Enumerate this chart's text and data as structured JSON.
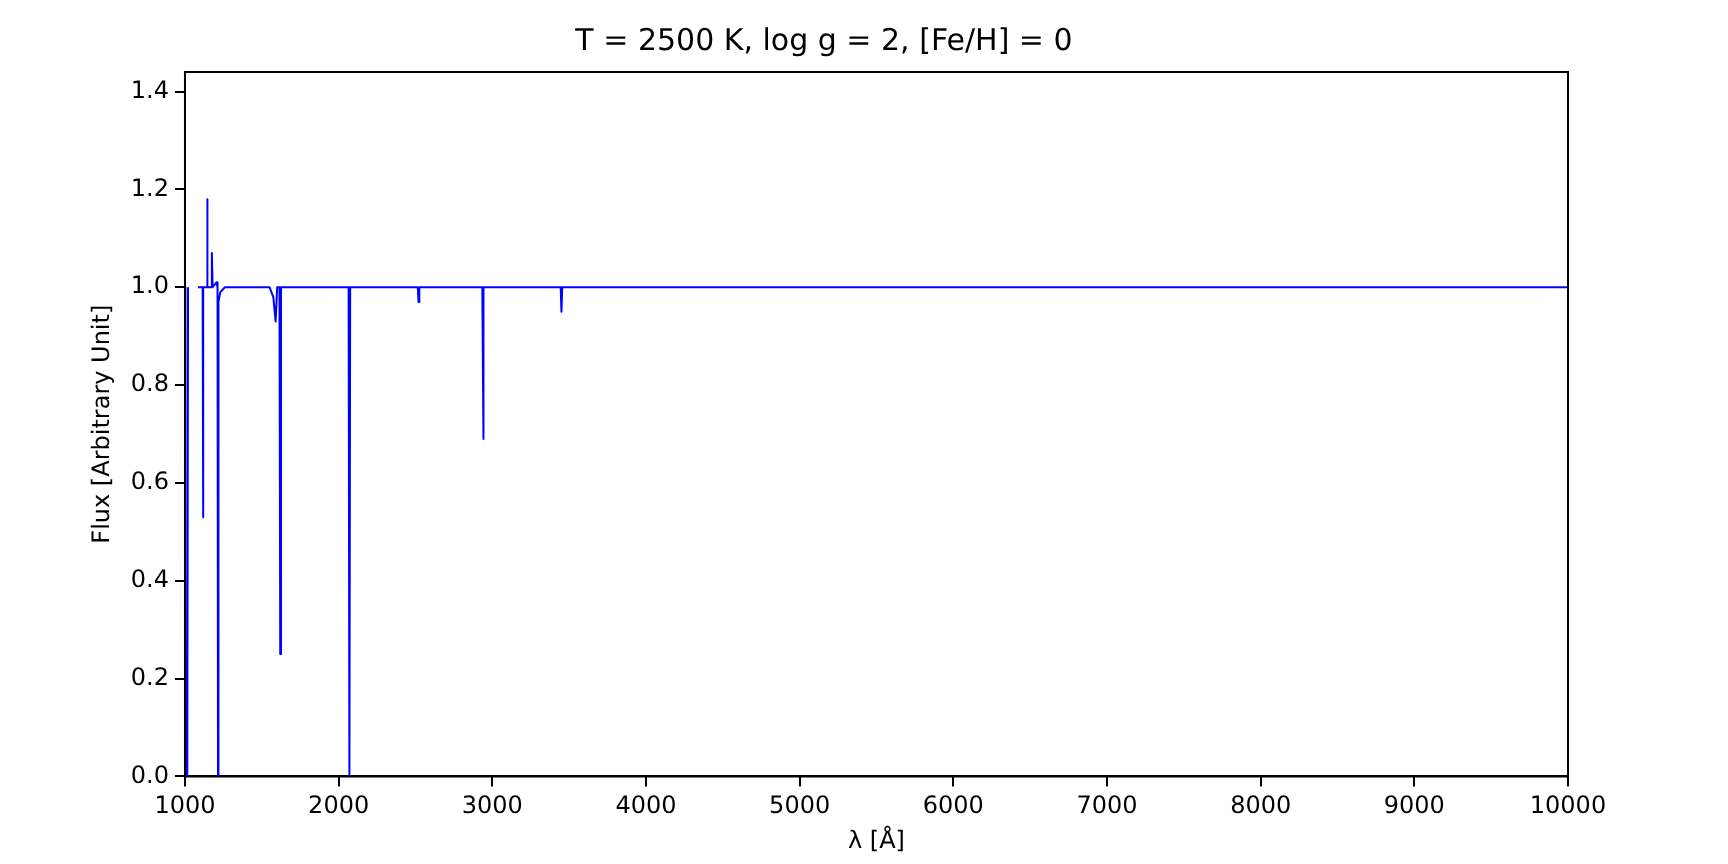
{
  "chart_data": {
    "type": "line",
    "title": "T = 2500 K, log g = 2, [Fe/H] = 0",
    "xlabel": "λ [Å]",
    "ylabel": "Flux [Arbitrary Unit]",
    "x": [
      1000,
      1003,
      1008,
      1010,
      1015,
      1020,
      1030,
      1040,
      1063,
      1066,
      1081,
      1084,
      1115,
      1117,
      1120,
      1140,
      1144,
      1148,
      1172,
      1175,
      1180,
      1205,
      1212,
      1215,
      1218,
      1230,
      1260,
      1550,
      1575,
      1590,
      1600,
      1615,
      1620,
      1625,
      2065,
      2070,
      2075,
      2515,
      2520,
      2525,
      2935,
      2940,
      2945,
      3445,
      3450,
      3455,
      10000
    ],
    "series": [
      {
        "color": "#0000ff",
        "values": [
          1.0,
          0,
          0,
          null,
          0,
          1.0,
          null,
          1.0,
          null,
          1.0,
          null,
          1.0,
          1.0,
          0.53,
          1.0,
          1.0,
          1.18,
          1.0,
          1.0,
          1.07,
          1.0,
          1.01,
          1.0,
          0,
          0.97,
          0.99,
          1.0,
          1.0,
          0.98,
          0.93,
          1.0,
          1.0,
          0.25,
          1.0,
          1.0,
          0,
          1.0,
          1.0,
          0.97,
          1.0,
          1.0,
          0.69,
          1.0,
          1.0,
          0.95,
          1.0,
          1.0
        ]
      }
    ],
    "xlim": [
      1000,
      10000
    ],
    "xticks": [
      1000,
      2000,
      3000,
      4000,
      5000,
      6000,
      7000,
      8000,
      9000,
      10000
    ],
    "ylim": [
      0,
      1.44
    ],
    "yticks": [
      {
        "value": 0,
        "label": "0.0"
      },
      {
        "value": 0.2,
        "label": "0.2"
      },
      {
        "value": 0.4,
        "label": "0.4"
      },
      {
        "value": 0.6,
        "label": "0.6"
      },
      {
        "value": 0.8,
        "label": "0.8"
      },
      {
        "value": 1,
        "label": "1.0"
      },
      {
        "value": 1.2,
        "label": "1.2"
      },
      {
        "value": 1.4,
        "label": "1.4"
      }
    ],
    "grid": false,
    "legend": false,
    "marker": "none",
    "line_style": "solid"
  }
}
